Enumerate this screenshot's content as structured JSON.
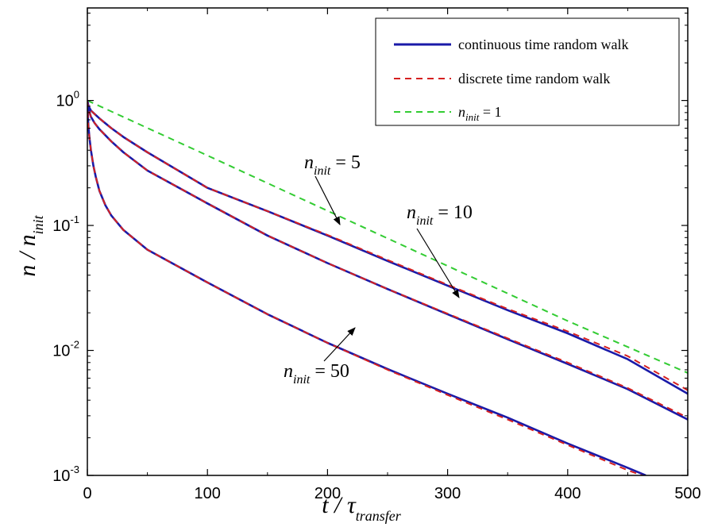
{
  "chart_data": {
    "type": "line",
    "xlabel": "t / τtransfer",
    "xlabel_parts": {
      "main": "t",
      "sep": " / ",
      "sym": "τ",
      "sub": "transfer"
    },
    "ylabel": "n / ninit",
    "ylabel_parts": {
      "main": "n",
      "sep": " / ",
      "sym": "n",
      "sub": "init"
    },
    "xlim": [
      0,
      500
    ],
    "ylim": [
      0.001,
      5.5
    ],
    "yscale": "log",
    "grid": false,
    "legend_position": "top-right",
    "xticks": [
      0,
      100,
      200,
      300,
      400,
      500
    ],
    "xtick_labels": [
      "0",
      "100",
      "200",
      "300",
      "400",
      "500"
    ],
    "yticks": [
      0.001,
      0.01,
      0.1,
      1
    ],
    "ytick_labels": [
      {
        "base": "10",
        "exp": "-3"
      },
      {
        "base": "10",
        "exp": "-2"
      },
      {
        "base": "10",
        "exp": "-1"
      },
      {
        "base": "10",
        "exp": "0"
      }
    ],
    "legend": [
      {
        "label": "continuous time random walk",
        "color": "#1a1aa8",
        "style": "solid"
      },
      {
        "label": "discrete time random walk",
        "color": "#d62020",
        "style": "dashed"
      },
      {
        "label_main": "n",
        "label_sub": "init",
        "label_rest": " = 1",
        "color": "#33cc33",
        "style": "dashed"
      }
    ],
    "series": [
      {
        "group": "ninit=1",
        "style": "dashed",
        "color": "#33cc33",
        "x": [
          0,
          100,
          200,
          300,
          400,
          500
        ],
        "y": [
          1.0,
          0.363,
          0.131,
          0.0474,
          0.0172,
          0.0066
        ]
      },
      {
        "group": "ninit=5",
        "style": "solid",
        "color": "#1a1aa8",
        "x": [
          0,
          1,
          3,
          6,
          10,
          20,
          30,
          50,
          100,
          150,
          200,
          250,
          300,
          350,
          400,
          450,
          500
        ],
        "y": [
          1.0,
          0.9,
          0.83,
          0.78,
          0.72,
          0.6,
          0.51,
          0.385,
          0.2,
          0.13,
          0.083,
          0.052,
          0.033,
          0.021,
          0.0137,
          0.0085,
          0.0045
        ]
      },
      {
        "group": "ninit=5",
        "style": "dashed",
        "color": "#d62020",
        "x": [
          0,
          1,
          3,
          6,
          10,
          20,
          30,
          50,
          100,
          150,
          200,
          250,
          300,
          350,
          400,
          450,
          500
        ],
        "y": [
          1.0,
          0.9,
          0.83,
          0.78,
          0.72,
          0.6,
          0.51,
          0.385,
          0.2,
          0.13,
          0.084,
          0.053,
          0.0335,
          0.0215,
          0.0142,
          0.009,
          0.0048
        ]
      },
      {
        "group": "ninit=10",
        "style": "solid",
        "color": "#1a1aa8",
        "x": [
          0,
          1,
          3,
          6,
          10,
          20,
          30,
          50,
          100,
          150,
          200,
          250,
          300,
          350,
          400,
          450,
          500
        ],
        "y": [
          1.0,
          0.85,
          0.74,
          0.66,
          0.59,
          0.47,
          0.385,
          0.275,
          0.15,
          0.083,
          0.05,
          0.031,
          0.0195,
          0.0123,
          0.0078,
          0.0049,
          0.0028
        ]
      },
      {
        "group": "ninit=10",
        "style": "dashed",
        "color": "#d62020",
        "x": [
          0,
          1,
          3,
          6,
          10,
          20,
          30,
          50,
          100,
          150,
          200,
          250,
          300,
          350,
          400,
          450,
          500
        ],
        "y": [
          1.0,
          0.85,
          0.74,
          0.66,
          0.59,
          0.47,
          0.385,
          0.275,
          0.15,
          0.083,
          0.05,
          0.031,
          0.0197,
          0.0125,
          0.008,
          0.005,
          0.0029
        ]
      },
      {
        "group": "ninit=50",
        "style": "solid",
        "color": "#1a1aa8",
        "x": [
          0,
          0.5,
          1,
          2,
          3,
          5,
          7,
          10,
          15,
          20,
          30,
          50,
          100,
          150,
          200,
          250,
          300,
          350,
          400,
          450,
          465
        ],
        "y": [
          1.0,
          0.72,
          0.6,
          0.48,
          0.4,
          0.3,
          0.245,
          0.19,
          0.145,
          0.12,
          0.092,
          0.064,
          0.035,
          0.0195,
          0.0115,
          0.0071,
          0.0045,
          0.0029,
          0.0018,
          0.00115,
          0.001
        ]
      },
      {
        "group": "ninit=50",
        "style": "dashed",
        "color": "#d62020",
        "x": [
          0,
          0.5,
          1,
          2,
          3,
          5,
          7,
          10,
          15,
          20,
          30,
          50,
          100,
          150,
          200,
          250,
          300,
          350,
          400,
          450,
          462
        ],
        "y": [
          1.0,
          0.72,
          0.6,
          0.48,
          0.4,
          0.3,
          0.245,
          0.19,
          0.145,
          0.12,
          0.092,
          0.064,
          0.035,
          0.0195,
          0.0115,
          0.007,
          0.0044,
          0.0028,
          0.00175,
          0.0011,
          0.001
        ]
      }
    ],
    "annotations": [
      {
        "main": "n",
        "sub": "init",
        "rest": " = 5",
        "arrow_to": [
          205,
          0.08
        ]
      },
      {
        "main": "n",
        "sub": "init",
        "rest": " = 10",
        "arrow_to": [
          315,
          0.019
        ]
      },
      {
        "main": "n",
        "sub": "init",
        "rest": " = 50",
        "arrow_to": [
          220,
          0.0115
        ]
      }
    ]
  }
}
